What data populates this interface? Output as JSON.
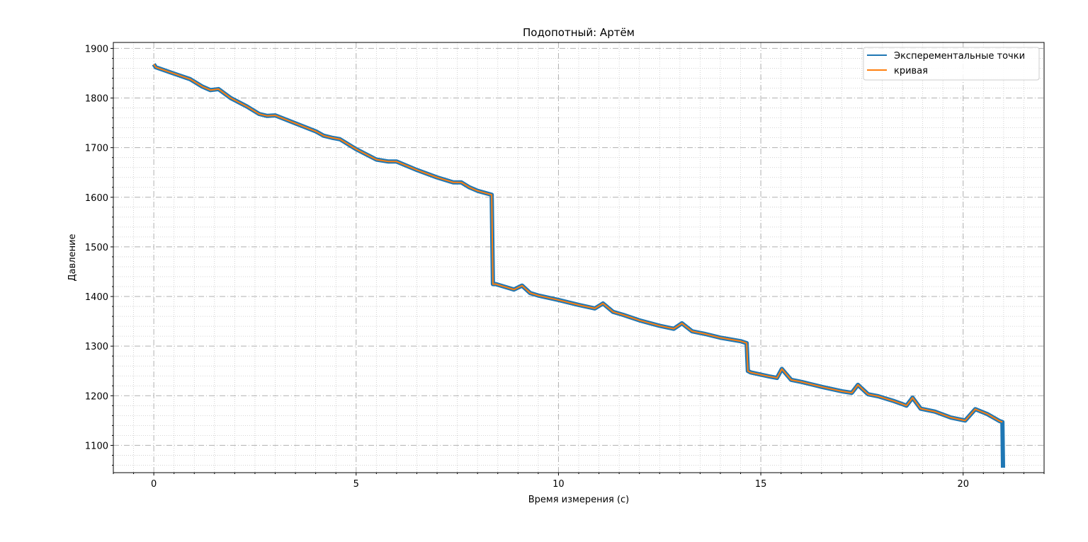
{
  "chart_data": {
    "type": "line",
    "title": "Подопотный: Артём",
    "xlabel": "Время измерения (с)",
    "ylabel": "Давление",
    "xlim": [
      -1.0,
      22.0
    ],
    "ylim": [
      1045,
      1912
    ],
    "xticks": [
      0,
      5,
      10,
      15,
      20
    ],
    "yticks": [
      1100,
      1200,
      1300,
      1400,
      1500,
      1600,
      1700,
      1800,
      1900
    ],
    "grid": true,
    "legend_position": "top-right",
    "colors": {
      "experimental": "#1f77b4",
      "curve": "#ff7f0e"
    },
    "series": [
      {
        "name": "Эксперементальные точки",
        "x": [
          0,
          0.05,
          0.4,
          0.9,
          1.2,
          1.4,
          1.6,
          1.9,
          2.3,
          2.6,
          2.8,
          3.0,
          3.5,
          4.0,
          4.2,
          4.4,
          4.6,
          5.0,
          5.5,
          5.8,
          6.0,
          6.5,
          7.0,
          7.4,
          7.6,
          7.8,
          8.0,
          8.35,
          8.38,
          8.45,
          8.9,
          9.1,
          9.3,
          9.5,
          10.0,
          10.5,
          10.9,
          11.1,
          11.35,
          11.6,
          12.0,
          12.5,
          12.85,
          13.05,
          13.3,
          13.6,
          14.0,
          14.5,
          14.65,
          14.68,
          14.75,
          15.2,
          15.4,
          15.52,
          15.75,
          16.0,
          16.5,
          17.0,
          17.25,
          17.4,
          17.65,
          17.9,
          18.3,
          18.6,
          18.75,
          18.95,
          19.3,
          19.7,
          20.05,
          20.3,
          20.6,
          20.9,
          20.97,
          20.985
        ],
        "y": [
          1868,
          1862,
          1852,
          1838,
          1823,
          1816,
          1818,
          1800,
          1783,
          1768,
          1764,
          1765,
          1749,
          1733,
          1724,
          1720,
          1717,
          1697,
          1676,
          1672,
          1672,
          1655,
          1640,
          1630,
          1630,
          1620,
          1613,
          1605,
          1425,
          1425,
          1414,
          1422,
          1407,
          1402,
          1393,
          1383,
          1376,
          1386,
          1369,
          1363,
          1352,
          1341,
          1335,
          1346,
          1330,
          1325,
          1317,
          1310,
          1306,
          1250,
          1247,
          1239,
          1236,
          1254,
          1232,
          1228,
          1218,
          1209,
          1206,
          1222,
          1203,
          1199,
          1189,
          1180,
          1196,
          1174,
          1168,
          1156,
          1150,
          1173,
          1163,
          1149,
          1147,
          1055
        ]
      },
      {
        "name": "кривая",
        "x": [
          0,
          0.05,
          0.4,
          0.9,
          1.2,
          1.4,
          1.6,
          1.9,
          2.3,
          2.6,
          2.8,
          3.0,
          3.5,
          4.0,
          4.2,
          4.4,
          4.6,
          5.0,
          5.5,
          5.8,
          6.0,
          6.5,
          7.0,
          7.4,
          7.6,
          7.8,
          8.0,
          8.35,
          8.38,
          8.45,
          8.9,
          9.1,
          9.3,
          9.5,
          10.0,
          10.5,
          10.9,
          11.1,
          11.35,
          11.6,
          12.0,
          12.5,
          12.85,
          13.05,
          13.3,
          13.6,
          14.0,
          14.5,
          14.65,
          14.68,
          14.75,
          15.2,
          15.4,
          15.52,
          15.75,
          16.0,
          16.5,
          17.0,
          17.25,
          17.4,
          17.65,
          17.9,
          18.3,
          18.6,
          18.75,
          18.95,
          19.3,
          19.7,
          20.05,
          20.3,
          20.6,
          20.9,
          20.97
        ],
        "y": [
          1868,
          1862,
          1852,
          1838,
          1823,
          1816,
          1818,
          1800,
          1783,
          1768,
          1764,
          1765,
          1749,
          1733,
          1724,
          1720,
          1717,
          1697,
          1676,
          1672,
          1672,
          1655,
          1640,
          1630,
          1630,
          1620,
          1613,
          1605,
          1425,
          1425,
          1414,
          1422,
          1407,
          1402,
          1393,
          1383,
          1376,
          1386,
          1369,
          1363,
          1352,
          1341,
          1335,
          1346,
          1330,
          1325,
          1317,
          1310,
          1306,
          1250,
          1247,
          1239,
          1236,
          1254,
          1232,
          1228,
          1218,
          1209,
          1206,
          1222,
          1203,
          1199,
          1189,
          1180,
          1196,
          1174,
          1168,
          1156,
          1150,
          1173,
          1163,
          1149,
          1147
        ]
      }
    ]
  }
}
